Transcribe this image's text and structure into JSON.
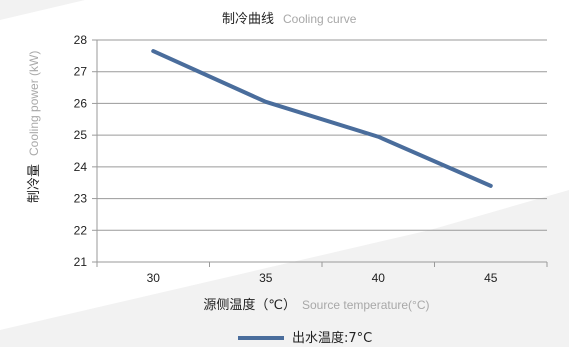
{
  "chart_data": {
    "type": "line",
    "title": "制冷曲线",
    "title_en": "Cooling curve",
    "xlabel": "源侧温度（℃）",
    "xlabel_en": "Source temperature(°C)",
    "ylabel": "制冷量",
    "ylabel_en": "Cooling power (kW)",
    "x": [
      30,
      35,
      40,
      45
    ],
    "xlim": [
      27.5,
      47.5
    ],
    "ylim": [
      21,
      28
    ],
    "y_ticks": [
      21,
      22,
      23,
      24,
      25,
      26,
      27,
      28
    ],
    "grid": "horizontal",
    "legend_position": "bottom-center",
    "series": [
      {
        "name": "出水温度:7°C",
        "values": [
          27.65,
          26.05,
          24.95,
          23.4
        ],
        "color": "#4a6d9c"
      }
    ]
  },
  "colors": {
    "grid": "#9a9a9a",
    "background_shade": "#f0f0f0"
  }
}
